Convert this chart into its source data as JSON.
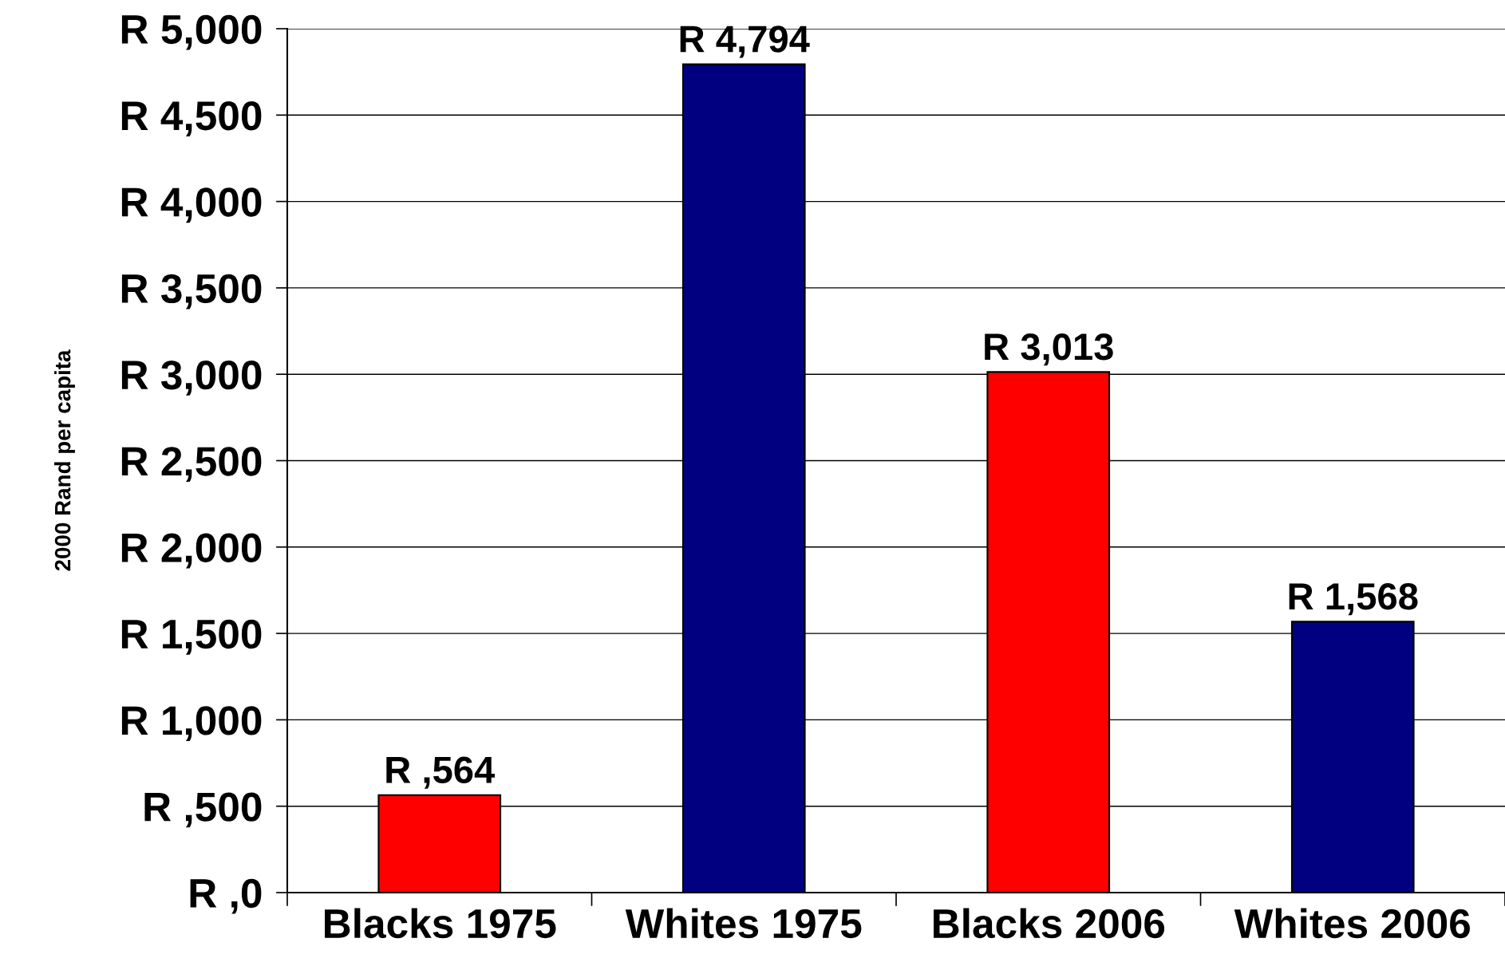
{
  "chart_data": {
    "type": "bar",
    "ylabel": "2000 Rand per capita",
    "categories": [
      "Blacks 1975",
      "Whites 1975",
      "Blacks 2006",
      "Whites 2006"
    ],
    "values": [
      564,
      4794,
      3013,
      1568
    ],
    "colors": [
      "#ff0000",
      "#000080",
      "#ff0000",
      "#000080"
    ],
    "value_labels": [
      "R ,564",
      "R 4,794",
      "R 3,013",
      "R 1,568"
    ],
    "ylim": [
      0,
      5000
    ],
    "yticks": [
      {
        "value": 0,
        "label": "R ,0"
      },
      {
        "value": 500,
        "label": "R ,500"
      },
      {
        "value": 1000,
        "label": "R 1,000"
      },
      {
        "value": 1500,
        "label": "R 1,500"
      },
      {
        "value": 2000,
        "label": "R 2,000"
      },
      {
        "value": 2500,
        "label": "R 2,500"
      },
      {
        "value": 3000,
        "label": "R 3,000"
      },
      {
        "value": 3500,
        "label": "R 3,500"
      },
      {
        "value": 4000,
        "label": "R 4,000"
      },
      {
        "value": 4500,
        "label": "R 4,500"
      },
      {
        "value": 5000,
        "label": "R 5,000"
      }
    ],
    "grid": "y"
  }
}
